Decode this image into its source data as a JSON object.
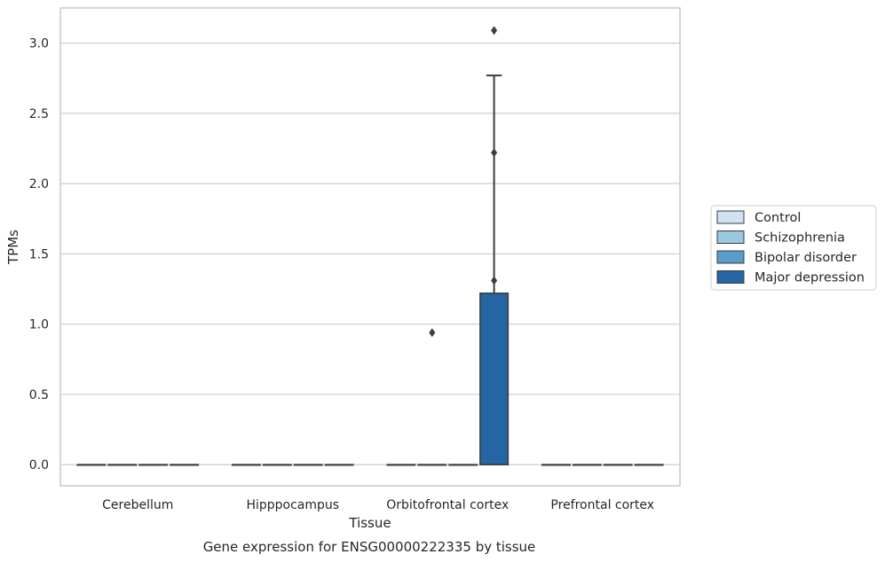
{
  "chart_data": {
    "type": "box",
    "title": "",
    "caption": "Gene expression for ENSG00000222335 by tissue",
    "xlabel": "Tissue",
    "ylabel": "TPMs",
    "categories": [
      "Cerebellum",
      "Hipppocampus",
      "Orbitofrontal cortex",
      "Prefrontal cortex"
    ],
    "ylim": [
      -0.15,
      3.25
    ],
    "yticks": [
      "0.0",
      "0.5",
      "1.0",
      "1.5",
      "2.0",
      "2.5",
      "3.0"
    ],
    "grid": "horizontal",
    "legend_position": "right",
    "series": [
      {
        "name": "Control",
        "color": "#d0e1f2",
        "boxes": [
          {
            "category": "Cerebellum",
            "whisker_low": 0,
            "q1": 0,
            "median": 0,
            "q3": 0,
            "whisker_high": 0,
            "outliers": []
          },
          {
            "category": "Hipppocampus",
            "whisker_low": 0,
            "q1": 0,
            "median": 0,
            "q3": 0,
            "whisker_high": 0,
            "outliers": []
          },
          {
            "category": "Orbitofrontal cortex",
            "whisker_low": 0,
            "q1": 0,
            "median": 0,
            "q3": 0,
            "whisker_high": 0,
            "outliers": []
          },
          {
            "category": "Prefrontal cortex",
            "whisker_low": 0,
            "q1": 0,
            "median": 0,
            "q3": 0,
            "whisker_high": 0,
            "outliers": []
          }
        ]
      },
      {
        "name": "Schizophrenia",
        "color": "#9ac8e0",
        "boxes": [
          {
            "category": "Cerebellum",
            "whisker_low": 0,
            "q1": 0,
            "median": 0,
            "q3": 0,
            "whisker_high": 0,
            "outliers": []
          },
          {
            "category": "Hipppocampus",
            "whisker_low": 0,
            "q1": 0,
            "median": 0,
            "q3": 0,
            "whisker_high": 0,
            "outliers": []
          },
          {
            "category": "Orbitofrontal cortex",
            "whisker_low": 0,
            "q1": 0,
            "median": 0,
            "q3": 0,
            "whisker_high": 0,
            "outliers": [
              0.94
            ]
          },
          {
            "category": "Prefrontal cortex",
            "whisker_low": 0,
            "q1": 0,
            "median": 0,
            "q3": 0,
            "whisker_high": 0,
            "outliers": []
          }
        ]
      },
      {
        "name": "Bipolar disorder",
        "color": "#5a9dc8",
        "boxes": [
          {
            "category": "Cerebellum",
            "whisker_low": 0,
            "q1": 0,
            "median": 0,
            "q3": 0,
            "whisker_high": 0,
            "outliers": []
          },
          {
            "category": "Hipppocampus",
            "whisker_low": 0,
            "q1": 0,
            "median": 0,
            "q3": 0,
            "whisker_high": 0,
            "outliers": []
          },
          {
            "category": "Orbitofrontal cortex",
            "whisker_low": 0,
            "q1": 0,
            "median": 0,
            "q3": 0,
            "whisker_high": 0,
            "outliers": []
          },
          {
            "category": "Prefrontal cortex",
            "whisker_low": 0,
            "q1": 0,
            "median": 0,
            "q3": 0,
            "whisker_high": 0,
            "outliers": []
          }
        ]
      },
      {
        "name": "Major depression",
        "color": "#2565a3",
        "boxes": [
          {
            "category": "Cerebellum",
            "whisker_low": 0,
            "q1": 0,
            "median": 0,
            "q3": 0,
            "whisker_high": 0,
            "outliers": []
          },
          {
            "category": "Hipppocampus",
            "whisker_low": 0,
            "q1": 0,
            "median": 0,
            "q3": 0,
            "whisker_high": 0,
            "outliers": []
          },
          {
            "category": "Orbitofrontal cortex",
            "whisker_low": 0,
            "q1": 0,
            "median": 0,
            "q3": 1.22,
            "whisker_high": 2.77,
            "outliers": [
              1.31,
              2.22,
              3.09
            ]
          },
          {
            "category": "Prefrontal cortex",
            "whisker_low": 0,
            "q1": 0,
            "median": 0,
            "q3": 0,
            "whisker_high": 0,
            "outliers": []
          }
        ]
      }
    ]
  }
}
